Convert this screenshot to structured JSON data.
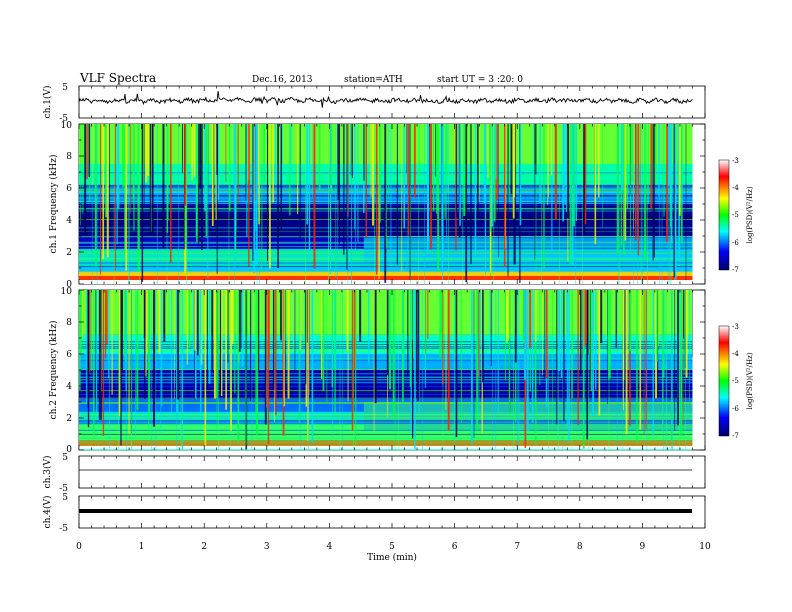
{
  "header": {
    "title": "VLF Spectra",
    "date": "Dec.16, 2013",
    "station": "station=ATH",
    "start": "start UT = 3 :20: 0"
  },
  "colors": {
    "axis": "#000000",
    "colormap": [
      "#000066",
      "#0000ff",
      "#00ffff",
      "#00ff00",
      "#ffff00",
      "#ff0000",
      "#ffffff"
    ]
  },
  "chart_data": [
    {
      "type": "line",
      "panel": "ch.1",
      "ylabel": "ch.1(V)",
      "ylim": [
        -5,
        5
      ],
      "ytick_labels": [
        "5",
        "-5"
      ],
      "x": [
        0,
        1,
        2,
        3,
        4,
        5,
        6,
        7,
        8,
        9,
        9.8
      ],
      "y": [
        0.5,
        0.2,
        0.5,
        0.6,
        0.4,
        0.5,
        0.3,
        0.4,
        0.5,
        0.3,
        0.4
      ]
    },
    {
      "type": "heatmap",
      "panel": "ch.1",
      "ylabel": "ch.1 Frequency (kHz)",
      "ylim": [
        0,
        10
      ],
      "ytick_labels": [
        "0",
        "2",
        "4",
        "6",
        "8",
        "10"
      ],
      "colorbar_label": "log(PSD)(V²/Hz)",
      "colorbar_range": [
        -7,
        -3
      ],
      "colorbar_tick_labels": [
        "-3",
        "-4",
        "-5",
        "-6",
        "-7"
      ]
    },
    {
      "type": "heatmap",
      "panel": "ch.2",
      "ylabel": "ch.2 Frequency (kHz)",
      "ylim": [
        0,
        10
      ],
      "ytick_labels": [
        "0",
        "2",
        "4",
        "6",
        "8",
        "10"
      ],
      "colorbar_label": "log(PSD)(V²/Hz)",
      "colorbar_range": [
        -7,
        -3
      ],
      "colorbar_tick_labels": [
        "-3",
        "-4",
        "-5",
        "-6",
        "-7"
      ]
    },
    {
      "type": "line",
      "panel": "ch.3",
      "ylabel": "ch.3(V)",
      "ylim": [
        -5,
        5
      ],
      "ytick_labels": [
        "5",
        "-5"
      ],
      "x": [
        0,
        9.8
      ],
      "y": [
        0,
        0
      ]
    },
    {
      "type": "line",
      "panel": "ch.4",
      "ylabel": "ch.4(V)",
      "ylim": [
        -5,
        5
      ],
      "ytick_labels": [
        "5",
        "-5"
      ],
      "x": [
        0,
        9.8
      ],
      "y": [
        0,
        0
      ]
    }
  ],
  "xaxis": {
    "label": "Time (min)",
    "range": [
      0,
      10
    ],
    "tick_labels": [
      "0",
      "1",
      "2",
      "3",
      "4",
      "5",
      "6",
      "7",
      "8",
      "9",
      "10"
    ]
  }
}
